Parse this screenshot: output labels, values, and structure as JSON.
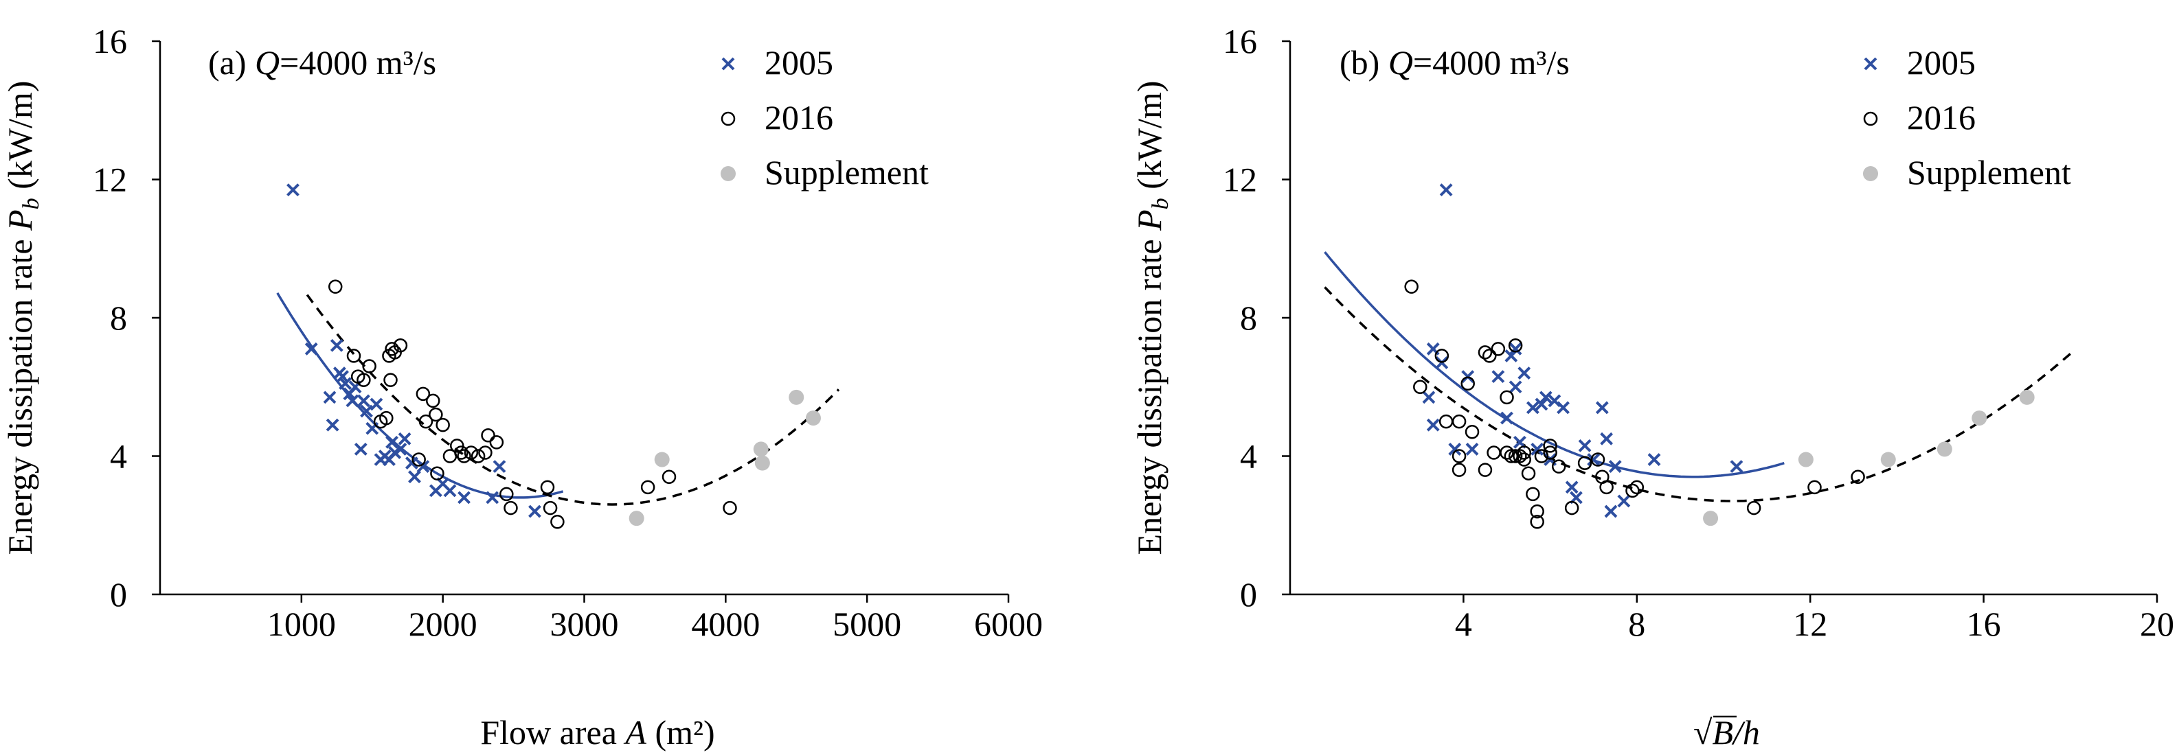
{
  "colors": {
    "blue": "#2e4fa0",
    "black": "#000000",
    "gray": "#c0c0c0"
  },
  "legend": {
    "s2005": "2005",
    "s2016": "2016",
    "supplement": "Supplement"
  },
  "chart_data": [
    {
      "type": "scatter",
      "panel": "(a)",
      "title_prefix": "(a) ",
      "title_var": "Q",
      "title_rest": "=4000 m³/s",
      "ylabel": {
        "main": "Energy dissipation rate ",
        "var": "P",
        "sub": "b",
        "unit": " (kW/m)"
      },
      "xlabel": {
        "main": "Flow area ",
        "var": "A",
        "unit": " (m²)"
      },
      "xlim": [
        0,
        6000
      ],
      "ylim": [
        0,
        16
      ],
      "xticks": [
        1000,
        2000,
        3000,
        4000,
        5000,
        6000
      ],
      "yticks": [
        0,
        4,
        8,
        12,
        16
      ],
      "series": [
        {
          "name": "2005",
          "marker": "x",
          "color": "#2e4fa0",
          "points": [
            [
              940,
              11.7
            ],
            [
              1070,
              7.1
            ],
            [
              1200,
              5.7
            ],
            [
              1220,
              4.9
            ],
            [
              1250,
              7.2
            ],
            [
              1270,
              6.4
            ],
            [
              1290,
              6.3
            ],
            [
              1310,
              6.1
            ],
            [
              1340,
              5.8
            ],
            [
              1360,
              5.6
            ],
            [
              1380,
              6.0
            ],
            [
              1420,
              4.2
            ],
            [
              1440,
              5.6
            ],
            [
              1460,
              5.3
            ],
            [
              1500,
              4.8
            ],
            [
              1530,
              5.5
            ],
            [
              1560,
              3.9
            ],
            [
              1590,
              4.0
            ],
            [
              1620,
              3.9
            ],
            [
              1640,
              4.4
            ],
            [
              1660,
              4.1
            ],
            [
              1700,
              4.2
            ],
            [
              1730,
              4.5
            ],
            [
              1780,
              3.8
            ],
            [
              1800,
              3.4
            ],
            [
              1860,
              3.7
            ],
            [
              1950,
              3.0
            ],
            [
              2000,
              3.2
            ],
            [
              2050,
              3.0
            ],
            [
              2150,
              2.8
            ],
            [
              2350,
              2.8
            ],
            [
              2400,
              3.7
            ],
            [
              2650,
              2.4
            ]
          ]
        },
        {
          "name": "2016",
          "marker": "circle",
          "color": "#000000",
          "points": [
            [
              1240,
              8.9
            ],
            [
              1370,
              6.9
            ],
            [
              1400,
              6.3
            ],
            [
              1440,
              6.2
            ],
            [
              1480,
              6.6
            ],
            [
              1560,
              5.0
            ],
            [
              1600,
              5.1
            ],
            [
              1620,
              6.9
            ],
            [
              1630,
              6.2
            ],
            [
              1640,
              7.1
            ],
            [
              1660,
              7.0
            ],
            [
              1700,
              7.2
            ],
            [
              1830,
              3.9
            ],
            [
              1860,
              5.8
            ],
            [
              1880,
              5.0
            ],
            [
              1930,
              5.6
            ],
            [
              1950,
              5.2
            ],
            [
              1960,
              3.5
            ],
            [
              2000,
              4.9
            ],
            [
              2050,
              4.0
            ],
            [
              2100,
              4.3
            ],
            [
              2130,
              4.1
            ],
            [
              2150,
              4.0
            ],
            [
              2200,
              4.1
            ],
            [
              2250,
              4.0
            ],
            [
              2300,
              4.1
            ],
            [
              2320,
              4.6
            ],
            [
              2380,
              4.4
            ],
            [
              2450,
              2.9
            ],
            [
              2480,
              2.5
            ],
            [
              2740,
              3.1
            ],
            [
              2760,
              2.5
            ],
            [
              2810,
              2.1
            ],
            [
              3450,
              3.1
            ],
            [
              3600,
              3.4
            ],
            [
              4030,
              2.5
            ]
          ]
        },
        {
          "name": "Supplement",
          "marker": "dot",
          "color": "#c0c0c0",
          "points": [
            [
              3370,
              2.2
            ],
            [
              3550,
              3.9
            ],
            [
              4250,
              4.2
            ],
            [
              4260,
              3.8
            ],
            [
              4500,
              5.7
            ],
            [
              4620,
              5.1
            ]
          ]
        }
      ],
      "fits": [
        {
          "name": "fit-2005",
          "style": "solid",
          "color": "#2e4fa0",
          "x_range": [
            830,
            2850
          ],
          "vertex": [
            2550,
            2.8
          ],
          "k": 2e-06
        },
        {
          "name": "fit-2016",
          "style": "dashed",
          "color": "#000000",
          "x_range": [
            1040,
            4800
          ],
          "vertex": [
            3200,
            2.6
          ],
          "k": 1.3e-06
        }
      ]
    },
    {
      "type": "scatter",
      "panel": "(b)",
      "title_prefix": "(b) ",
      "title_var": "Q",
      "title_rest": "=4000 m³/s",
      "ylabel": {
        "main": "Energy dissipation rate ",
        "var": "P",
        "sub": "b",
        "unit": " (kW/m)"
      },
      "xlabel": {
        "main": "√B/h",
        "sqrt_var": "B",
        "rest": "/h"
      },
      "xlim": [
        0,
        20
      ],
      "ylim": [
        0,
        16
      ],
      "xticks": [
        4,
        8,
        12,
        16,
        20
      ],
      "yticks": [
        0,
        4,
        8,
        12,
        16
      ],
      "series": [
        {
          "name": "2005",
          "marker": "x",
          "color": "#2e4fa0",
          "points": [
            [
              3.6,
              11.7
            ],
            [
              3.2,
              5.7
            ],
            [
              3.3,
              4.9
            ],
            [
              3.3,
              7.1
            ],
            [
              3.5,
              6.7
            ],
            [
              3.8,
              4.2
            ],
            [
              4.1,
              6.3
            ],
            [
              4.2,
              4.2
            ],
            [
              4.8,
              6.3
            ],
            [
              5.0,
              5.1
            ],
            [
              5.1,
              6.9
            ],
            [
              5.2,
              7.1
            ],
            [
              5.2,
              6.0
            ],
            [
              5.3,
              4.4
            ],
            [
              5.4,
              6.4
            ],
            [
              5.6,
              5.4
            ],
            [
              5.7,
              4.2
            ],
            [
              5.8,
              5.5
            ],
            [
              5.9,
              5.7
            ],
            [
              6.0,
              3.9
            ],
            [
              6.1,
              5.6
            ],
            [
              6.3,
              5.4
            ],
            [
              6.5,
              3.1
            ],
            [
              6.6,
              2.8
            ],
            [
              6.8,
              4.3
            ],
            [
              7.0,
              3.9
            ],
            [
              7.2,
              5.4
            ],
            [
              7.3,
              4.5
            ],
            [
              7.4,
              2.4
            ],
            [
              7.5,
              3.7
            ],
            [
              7.7,
              2.7
            ],
            [
              8.4,
              3.9
            ],
            [
              10.3,
              3.7
            ]
          ]
        },
        {
          "name": "2016",
          "marker": "circle",
          "color": "#000000",
          "points": [
            [
              2.8,
              8.9
            ],
            [
              3.0,
              6.0
            ],
            [
              3.5,
              6.9
            ],
            [
              3.6,
              5.0
            ],
            [
              3.9,
              5.0
            ],
            [
              3.9,
              4.0
            ],
            [
              3.9,
              3.6
            ],
            [
              4.1,
              6.1
            ],
            [
              4.2,
              4.7
            ],
            [
              4.5,
              3.6
            ],
            [
              4.5,
              7.0
            ],
            [
              4.6,
              6.9
            ],
            [
              4.7,
              4.1
            ],
            [
              4.8,
              7.1
            ],
            [
              5.0,
              4.1
            ],
            [
              5.0,
              5.7
            ],
            [
              5.1,
              4.0
            ],
            [
              5.2,
              7.2
            ],
            [
              5.2,
              4.0
            ],
            [
              5.3,
              4.0
            ],
            [
              5.4,
              3.9
            ],
            [
              5.4,
              4.1
            ],
            [
              5.5,
              3.5
            ],
            [
              5.6,
              2.9
            ],
            [
              5.7,
              2.4
            ],
            [
              5.7,
              2.1
            ],
            [
              5.8,
              4.0
            ],
            [
              6.0,
              4.3
            ],
            [
              6.0,
              4.1
            ],
            [
              6.2,
              3.7
            ],
            [
              6.5,
              2.5
            ],
            [
              6.8,
              3.8
            ],
            [
              7.1,
              3.9
            ],
            [
              7.2,
              3.4
            ],
            [
              7.3,
              3.1
            ],
            [
              7.9,
              3.0
            ],
            [
              8.0,
              3.1
            ],
            [
              10.7,
              2.5
            ],
            [
              12.1,
              3.1
            ],
            [
              13.1,
              3.4
            ]
          ]
        },
        {
          "name": "Supplement",
          "marker": "dot",
          "color": "#c0c0c0",
          "points": [
            [
              9.7,
              2.2
            ],
            [
              11.9,
              3.9
            ],
            [
              13.8,
              3.9
            ],
            [
              15.1,
              4.2
            ],
            [
              15.9,
              5.1
            ],
            [
              17.0,
              5.7
            ]
          ]
        }
      ],
      "fits": [
        {
          "name": "fit-2005",
          "style": "solid",
          "color": "#2e4fa0",
          "x_range": [
            0.8,
            11.4
          ],
          "vertex": [
            9.3,
            3.4
          ],
          "k": 0.09
        },
        {
          "name": "fit-2016",
          "style": "dashed",
          "color": "#000000",
          "x_range": [
            0.8,
            18.0
          ],
          "vertex": [
            10.2,
            2.7
          ],
          "k": 0.07
        }
      ]
    }
  ]
}
